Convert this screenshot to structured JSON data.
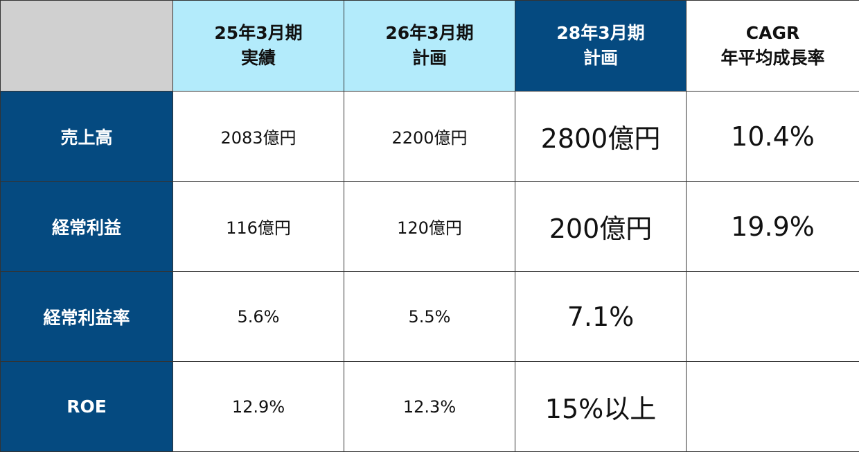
{
  "header": {
    "col1": {
      "line1": "25年3月期",
      "line2": "実績"
    },
    "col2": {
      "line1": "26年3月期",
      "line2": "計画"
    },
    "col3": {
      "line1": "28年3月期",
      "line2": "計画"
    },
    "col4": {
      "line1": "CAGR",
      "line2": "年平均成長率"
    }
  },
  "rows": [
    {
      "label": "売上高",
      "v25": "2083億円",
      "v26": "2200億円",
      "v28": "2800億円",
      "cagr": "10.4%"
    },
    {
      "label": "経常利益",
      "v25": "116億円",
      "v26": "120億円",
      "v28": "200億円",
      "cagr": "19.9%"
    },
    {
      "label": "経常利益率",
      "v25": "5.6%",
      "v26": "5.5%",
      "v28": "7.1%",
      "cagr": ""
    },
    {
      "label": "ROE",
      "v25": "12.9%",
      "v26": "12.3%",
      "v28": "15%以上",
      "cagr": ""
    }
  ],
  "colors": {
    "navy": "#054a80",
    "light_blue": "#b3ebfb",
    "corner_gray": "#d0d0d0"
  }
}
